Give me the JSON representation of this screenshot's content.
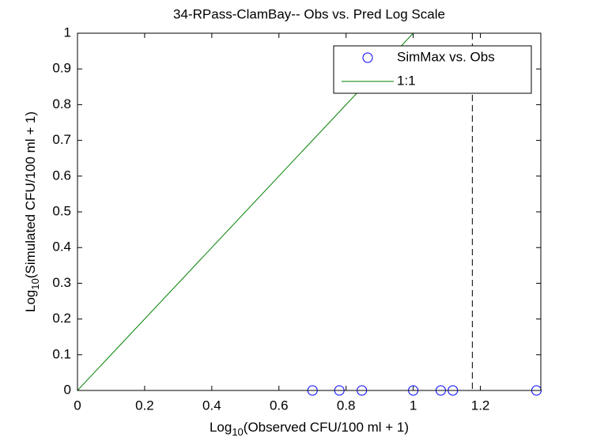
{
  "chart_data": {
    "type": "scatter",
    "title": "34-RPass-ClamBay-- Obs vs. Pred Log Scale",
    "xlabel": {
      "base": "Log",
      "sub": "10",
      "rest": "(Observed CFU/100 ml + 1)"
    },
    "ylabel": {
      "base": "Log",
      "sub": "10",
      "rest": "(Simulated CFU/100 ml + 1)"
    },
    "xlim": [
      0,
      1.38
    ],
    "ylim": [
      0,
      1
    ],
    "xticks": [
      0,
      0.2,
      0.4,
      0.6,
      0.8,
      1,
      1.2
    ],
    "yticks": [
      0,
      0.1,
      0.2,
      0.3,
      0.4,
      0.5,
      0.6,
      0.7,
      0.8,
      0.9,
      1
    ],
    "series": [
      {
        "name": "SimMax vs. Obs",
        "color": "#0000ff",
        "style": "marker",
        "x": [
          0.7,
          0.78,
          0.847,
          1.0,
          1.082,
          1.118,
          1.367
        ],
        "values": [
          0,
          0,
          0,
          0,
          0,
          0,
          0
        ]
      },
      {
        "name": "1:1",
        "color": "#008000",
        "style": "line",
        "x": [
          0,
          1
        ],
        "values": [
          0,
          1
        ]
      }
    ],
    "vline": {
      "x": 1.176,
      "color": "#000000",
      "dashed": true
    },
    "legend": "upper right"
  }
}
